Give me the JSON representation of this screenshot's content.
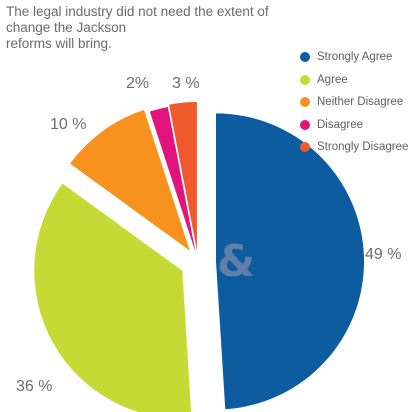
{
  "title_lines": [
    "The legal industry did not need the extent of change the Jackson",
    "reforms will bring."
  ],
  "chart_data": {
    "type": "pie",
    "title": "The legal industry did not need the extent of change the Jackson reforms will bring.",
    "categories": [
      "Strongly Agree",
      "Agree",
      "Neither Disagree",
      "Disagree",
      "Strongly Disagree"
    ],
    "values": [
      49,
      36,
      10,
      2,
      3
    ],
    "value_labels": [
      "49 %",
      "36 %",
      "10 %",
      "2%",
      "3 %"
    ],
    "colors": [
      "#0d5ca0",
      "#c6da36",
      "#f7921e",
      "#e3137c",
      "#ee5a2b"
    ],
    "exploded": true,
    "legend_placement": "top-right"
  },
  "center_mark": "&",
  "center_mark_color": "#5f7fa8"
}
